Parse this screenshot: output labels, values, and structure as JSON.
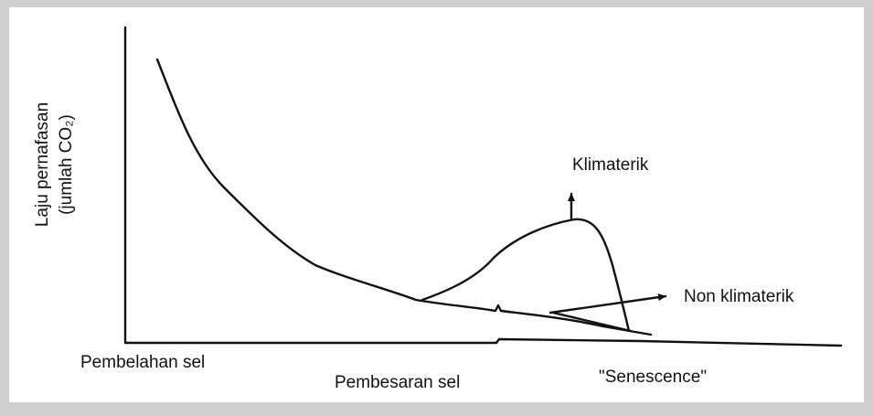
{
  "diagram": {
    "y_axis_label": {
      "line1": "Laju pernafasan",
      "line2": "(jumlah CO₂)"
    },
    "curves": {
      "climacteric": "Klimaterik",
      "non_climacteric": "Non klimaterik"
    },
    "stages": [
      "Pembelahan sel",
      "Pembesaran sel",
      "\"Senescence\""
    ]
  }
}
